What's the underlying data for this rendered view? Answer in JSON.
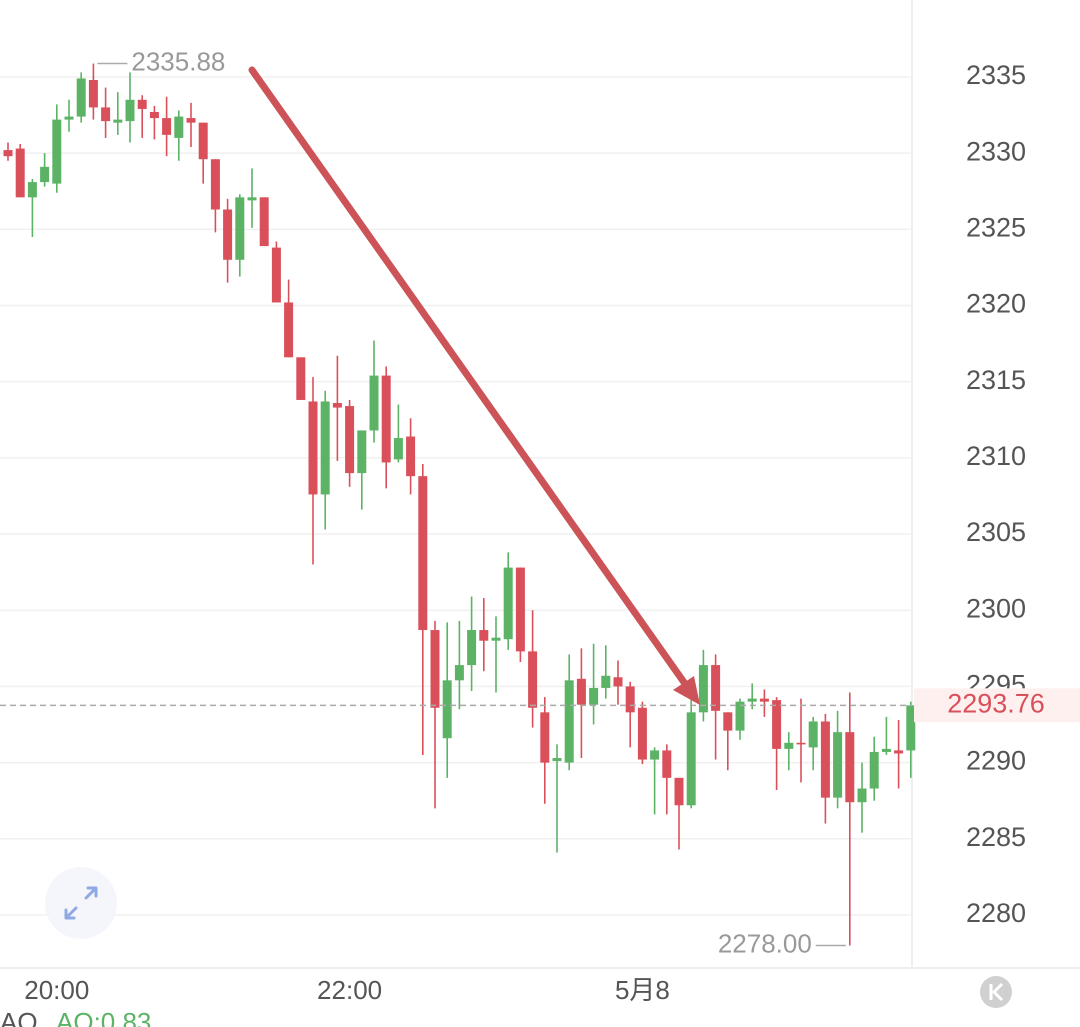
{
  "chart_data": {
    "type": "candlestick",
    "categories": [
      null,
      null,
      null,
      null,
      "20:00",
      null,
      null,
      null,
      null,
      null,
      null,
      null,
      null,
      null,
      null,
      null,
      null,
      null,
      null,
      null,
      null,
      null,
      null,
      null,
      null,
      null,
      null,
      null,
      "22:00",
      null,
      null,
      null,
      null,
      null,
      null,
      null,
      null,
      null,
      null,
      null,
      null,
      null,
      null,
      null,
      null,
      null,
      null,
      null,
      null,
      null,
      null,
      null,
      "5月8",
      null,
      null,
      null,
      null,
      null,
      null,
      null,
      null,
      null,
      null,
      null,
      null,
      null,
      null,
      null,
      null,
      null,
      null,
      null,
      null,
      null,
      null
    ],
    "open": [
      2330.2,
      2330.3,
      2327.1,
      2328.1,
      2328.0,
      2332.2,
      2332.4,
      2334.8,
      2333.0,
      2332.0,
      2332.1,
      2333.5,
      2332.7,
      2332.3,
      2331.0,
      2332.3,
      2332.0,
      2329.6,
      2326.3,
      2323.0,
      2326.9,
      2327.1,
      2323.8,
      2320.2,
      2316.6,
      2313.7,
      2307.6,
      2313.6,
      2313.4,
      2309.0,
      2311.8,
      2315.4,
      2309.9,
      2311.4,
      2308.8,
      2298.7,
      2291.6,
      2295.4,
      2296.4,
      2298.7,
      2298.0,
      2298.1,
      2302.8,
      2297.3,
      2293.3,
      2290.1,
      2290.0,
      2295.5,
      2293.8,
      2294.9,
      2295.6,
      2295.0,
      2293.6,
      2290.2,
      2290.8,
      2289.0,
      2287.2,
      2293.3,
      2296.4,
      2293.3,
      2292.1,
      2294.0,
      2294.2,
      2294.1,
      2290.9,
      2291.3,
      2291.0,
      2292.7,
      2287.7,
      2292.0,
      2287.4,
      2288.3,
      2290.7,
      2290.8,
      2290.8
    ],
    "high": [
      2330.7,
      2330.6,
      2328.3,
      2330.0,
      2333.2,
      2333.5,
      2335.3,
      2335.88,
      2334.3,
      2334.0,
      2335.3,
      2333.8,
      2333.1,
      2333.7,
      2332.8,
      2333.3,
      2332.0,
      2329.6,
      2327.0,
      2327.3,
      2329.0,
      2327.1,
      2324.2,
      2321.7,
      2316.6,
      2315.3,
      2314.4,
      2316.7,
      2313.8,
      2311.8,
      2317.7,
      2316.0,
      2313.5,
      2312.6,
      2309.6,
      2299.3,
      2299.2,
      2299.3,
      2300.9,
      2300.8,
      2299.6,
      2303.8,
      2302.8,
      2300.0,
      2294.3,
      2291.2,
      2297.1,
      2297.5,
      2297.8,
      2297.7,
      2296.7,
      2295.3,
      2294.0,
      2291.0,
      2291.2,
      2289.0,
      2294.6,
      2297.4,
      2297.1,
      2293.3,
      2294.2,
      2295.2,
      2294.8,
      2294.3,
      2292.0,
      2294.2,
      2293.0,
      2293.2,
      2293.4,
      2294.6,
      2290.0,
      2291.7,
      2293.0,
      2292.8,
      2294.0
    ],
    "low": [
      2329.5,
      2327.1,
      2324.5,
      2327.8,
      2327.4,
      2331.4,
      2332.0,
      2332.2,
      2331.0,
      2331.2,
      2330.7,
      2331.0,
      2330.9,
      2329.8,
      2329.5,
      2330.4,
      2328.0,
      2324.8,
      2321.5,
      2321.9,
      2325.1,
      2323.9,
      2320.2,
      2316.6,
      2313.8,
      2303.0,
      2305.3,
      2309.8,
      2308.1,
      2306.6,
      2311.0,
      2308.0,
      2309.7,
      2307.6,
      2290.5,
      2287.0,
      2289.0,
      2293.5,
      2294.7,
      2296.0,
      2294.6,
      2297.4,
      2296.6,
      2292.3,
      2287.3,
      2284.1,
      2289.5,
      2290.3,
      2292.5,
      2294.2,
      2293.8,
      2291.0,
      2289.9,
      2286.6,
      2286.6,
      2284.3,
      2287.0,
      2292.7,
      2290.2,
      2289.5,
      2291.5,
      2293.5,
      2293.0,
      2288.2,
      2289.5,
      2288.7,
      2289.5,
      2286.0,
      2287.0,
      2278.0,
      2285.4,
      2287.5,
      2290.5,
      2288.3,
      2289.0
    ],
    "close": [
      2329.8,
      2327.1,
      2328.1,
      2329.1,
      2332.2,
      2332.4,
      2334.9,
      2333.0,
      2332.1,
      2332.2,
      2333.5,
      2332.9,
      2332.3,
      2331.2,
      2332.4,
      2332.0,
      2329.6,
      2326.3,
      2323.0,
      2327.1,
      2327.1,
      2323.9,
      2320.2,
      2316.6,
      2313.8,
      2307.6,
      2313.7,
      2313.3,
      2309.0,
      2311.8,
      2315.4,
      2309.7,
      2311.3,
      2308.8,
      2298.7,
      2293.6,
      2295.4,
      2296.4,
      2298.7,
      2298.0,
      2298.2,
      2302.8,
      2297.3,
      2293.6,
      2290.0,
      2290.3,
      2295.4,
      2293.8,
      2294.9,
      2295.7,
      2295.0,
      2293.3,
      2290.2,
      2290.8,
      2289.0,
      2287.2,
      2293.3,
      2296.4,
      2293.4,
      2292.1,
      2294.0,
      2294.2,
      2294.0,
      2290.9,
      2291.3,
      2291.2,
      2292.7,
      2287.7,
      2292.0,
      2287.4,
      2288.3,
      2290.7,
      2290.9,
      2290.6,
      2293.76
    ],
    "up_color": "#5cb366",
    "down_color": "#d9505a",
    "ylim": [
      2276.52,
      2340.05
    ],
    "yticks": [
      2280,
      2285,
      2290,
      2295,
      2300,
      2305,
      2310,
      2315,
      2320,
      2325,
      2330,
      2335
    ],
    "grid": true,
    "high_label": "2335.88",
    "low_label": "2278.00",
    "last_price": {
      "value": 2293.76,
      "label": "2293.76"
    },
    "indicator_name": "AO",
    "indicator_value": "AO:0.83"
  }
}
